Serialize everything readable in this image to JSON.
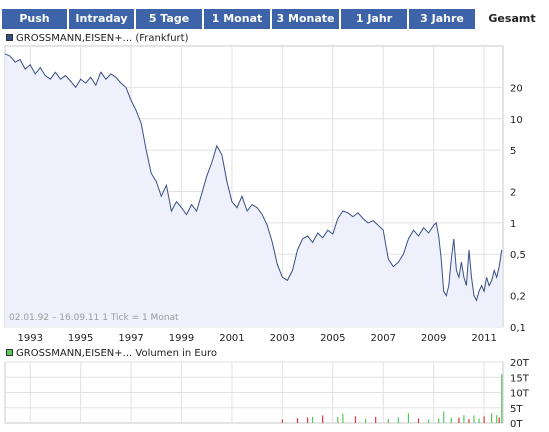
{
  "tabs": [
    {
      "label": "Push",
      "active": false
    },
    {
      "label": "Intraday",
      "active": false
    },
    {
      "label": "5 Tage",
      "active": false
    },
    {
      "label": "1 Monat",
      "active": false
    },
    {
      "label": "3 Monate",
      "active": false
    },
    {
      "label": "1 Jahr",
      "active": false
    },
    {
      "label": "3 Jahre",
      "active": false
    },
    {
      "label": "Gesamt",
      "active": true
    }
  ],
  "colors": {
    "tab_bg": "#3d64a8",
    "price_line": "#3a4e86",
    "price_fill": "#eef1fb",
    "volume_up": "#58c85a",
    "volume_down": "#d63a3a",
    "price_swatch": "#3a4e86",
    "volume_swatch": "#58c85a"
  },
  "legend_price": "GROSSMANN,EISEN+... (Frankfurt)",
  "legend_volume": "GROSSMANN,EISEN+... Volumen in Euro",
  "range_note": "02.01.92 – 16.09.11   1 Tick = 1 Monat",
  "chart_data": [
    {
      "type": "area",
      "series_name": "GROSSMANN,EISEN+... (Frankfurt)",
      "y_scale": "log",
      "ylim": [
        0.1,
        50
      ],
      "xlim": [
        1992.0,
        2011.75
      ],
      "x_ticks": [
        "1993",
        "1995",
        "1997",
        "1999",
        "2001",
        "2003",
        "2005",
        "2007",
        "2009",
        "2011"
      ],
      "x_tick_values": [
        1993,
        1995,
        1997,
        1999,
        2001,
        2003,
        2005,
        2007,
        2009,
        2011
      ],
      "y_ticks": [
        "20",
        "10",
        "5",
        "2",
        "1",
        "0,5",
        "0,2",
        "0,1"
      ],
      "y_tick_values": [
        20,
        10,
        5,
        2,
        1,
        0.5,
        0.2,
        0.1
      ],
      "grid": true,
      "points": [
        [
          1992.0,
          42
        ],
        [
          1992.2,
          40
        ],
        [
          1992.4,
          35
        ],
        [
          1992.6,
          37
        ],
        [
          1992.8,
          30
        ],
        [
          1993.0,
          33
        ],
        [
          1993.2,
          27
        ],
        [
          1993.4,
          31
        ],
        [
          1993.6,
          26
        ],
        [
          1993.8,
          24
        ],
        [
          1994.0,
          28
        ],
        [
          1994.2,
          24
        ],
        [
          1994.4,
          26
        ],
        [
          1994.6,
          23
        ],
        [
          1994.8,
          20
        ],
        [
          1995.0,
          24
        ],
        [
          1995.2,
          22
        ],
        [
          1995.4,
          25
        ],
        [
          1995.6,
          21
        ],
        [
          1995.8,
          28
        ],
        [
          1996.0,
          24
        ],
        [
          1996.2,
          27
        ],
        [
          1996.4,
          25
        ],
        [
          1996.6,
          22
        ],
        [
          1996.8,
          20
        ],
        [
          1997.0,
          15
        ],
        [
          1997.2,
          12
        ],
        [
          1997.4,
          9
        ],
        [
          1997.6,
          5
        ],
        [
          1997.8,
          3
        ],
        [
          1998.0,
          2.5
        ],
        [
          1998.2,
          1.8
        ],
        [
          1998.4,
          2.3
        ],
        [
          1998.6,
          1.3
        ],
        [
          1998.8,
          1.6
        ],
        [
          1999.0,
          1.4
        ],
        [
          1999.2,
          1.2
        ],
        [
          1999.4,
          1.5
        ],
        [
          1999.6,
          1.3
        ],
        [
          1999.8,
          1.9
        ],
        [
          2000.0,
          2.8
        ],
        [
          2000.2,
          3.8
        ],
        [
          2000.4,
          5.5
        ],
        [
          2000.6,
          4.5
        ],
        [
          2000.8,
          2.5
        ],
        [
          2001.0,
          1.6
        ],
        [
          2001.2,
          1.4
        ],
        [
          2001.4,
          1.8
        ],
        [
          2001.6,
          1.3
        ],
        [
          2001.8,
          1.5
        ],
        [
          2002.0,
          1.4
        ],
        [
          2002.2,
          1.2
        ],
        [
          2002.4,
          0.95
        ],
        [
          2002.6,
          0.65
        ],
        [
          2002.8,
          0.4
        ],
        [
          2003.0,
          0.3
        ],
        [
          2003.2,
          0.28
        ],
        [
          2003.4,
          0.35
        ],
        [
          2003.6,
          0.55
        ],
        [
          2003.8,
          0.7
        ],
        [
          2004.0,
          0.75
        ],
        [
          2004.2,
          0.65
        ],
        [
          2004.4,
          0.8
        ],
        [
          2004.6,
          0.72
        ],
        [
          2004.8,
          0.85
        ],
        [
          2005.0,
          0.78
        ],
        [
          2005.2,
          1.1
        ],
        [
          2005.4,
          1.3
        ],
        [
          2005.6,
          1.25
        ],
        [
          2005.8,
          1.15
        ],
        [
          2006.0,
          1.25
        ],
        [
          2006.2,
          1.1
        ],
        [
          2006.4,
          1.0
        ],
        [
          2006.6,
          1.05
        ],
        [
          2006.8,
          0.95
        ],
        [
          2007.0,
          0.85
        ],
        [
          2007.2,
          0.45
        ],
        [
          2007.4,
          0.38
        ],
        [
          2007.6,
          0.42
        ],
        [
          2007.8,
          0.5
        ],
        [
          2008.0,
          0.7
        ],
        [
          2008.2,
          0.85
        ],
        [
          2008.4,
          0.75
        ],
        [
          2008.6,
          0.9
        ],
        [
          2008.8,
          0.8
        ],
        [
          2009.0,
          0.95
        ],
        [
          2009.1,
          1.0
        ],
        [
          2009.2,
          0.75
        ],
        [
          2009.3,
          0.45
        ],
        [
          2009.4,
          0.22
        ],
        [
          2009.5,
          0.2
        ],
        [
          2009.6,
          0.25
        ],
        [
          2009.7,
          0.45
        ],
        [
          2009.8,
          0.7
        ],
        [
          2009.9,
          0.35
        ],
        [
          2010.0,
          0.3
        ],
        [
          2010.1,
          0.42
        ],
        [
          2010.2,
          0.3
        ],
        [
          2010.3,
          0.25
        ],
        [
          2010.4,
          0.55
        ],
        [
          2010.5,
          0.3
        ],
        [
          2010.6,
          0.2
        ],
        [
          2010.7,
          0.18
        ],
        [
          2010.8,
          0.22
        ],
        [
          2010.9,
          0.25
        ],
        [
          2011.0,
          0.22
        ],
        [
          2011.1,
          0.3
        ],
        [
          2011.2,
          0.25
        ],
        [
          2011.3,
          0.28
        ],
        [
          2011.4,
          0.35
        ],
        [
          2011.5,
          0.3
        ],
        [
          2011.6,
          0.38
        ],
        [
          2011.7,
          0.55
        ]
      ]
    },
    {
      "type": "bar",
      "series_name": "GROSSMANN,EISEN+... Volumen in Euro",
      "ylim": [
        0,
        20
      ],
      "y_ticks": [
        "20T",
        "15T",
        "10T",
        "5T",
        "0T"
      ],
      "y_tick_values": [
        20,
        15,
        10,
        5,
        0
      ],
      "grid": true,
      "bars": [
        [
          2003.0,
          1.2,
          "down"
        ],
        [
          2003.6,
          1.6,
          "down"
        ],
        [
          2004.0,
          1.8,
          "down"
        ],
        [
          2004.2,
          2.0,
          "up"
        ],
        [
          2004.6,
          2.5,
          "down"
        ],
        [
          2005.2,
          2.0,
          "up"
        ],
        [
          2005.4,
          3.0,
          "up"
        ],
        [
          2005.9,
          2.2,
          "down"
        ],
        [
          2006.3,
          1.4,
          "up"
        ],
        [
          2006.7,
          2.0,
          "down"
        ],
        [
          2007.2,
          1.3,
          "up"
        ],
        [
          2007.6,
          1.8,
          "up"
        ],
        [
          2008.0,
          3.2,
          "up"
        ],
        [
          2008.4,
          1.5,
          "down"
        ],
        [
          2008.8,
          1.1,
          "up"
        ],
        [
          2009.2,
          1.5,
          "up"
        ],
        [
          2009.4,
          3.8,
          "up"
        ],
        [
          2009.7,
          1.7,
          "up"
        ],
        [
          2010.0,
          1.8,
          "down"
        ],
        [
          2010.2,
          2.6,
          "up"
        ],
        [
          2010.4,
          1.3,
          "down"
        ],
        [
          2010.6,
          2.5,
          "up"
        ],
        [
          2010.8,
          1.5,
          "up"
        ],
        [
          2011.0,
          2.2,
          "down"
        ],
        [
          2011.3,
          3.2,
          "up"
        ],
        [
          2011.5,
          2.6,
          "up"
        ],
        [
          2011.6,
          1.8,
          "down"
        ],
        [
          2011.7,
          16.0,
          "up"
        ]
      ]
    }
  ]
}
